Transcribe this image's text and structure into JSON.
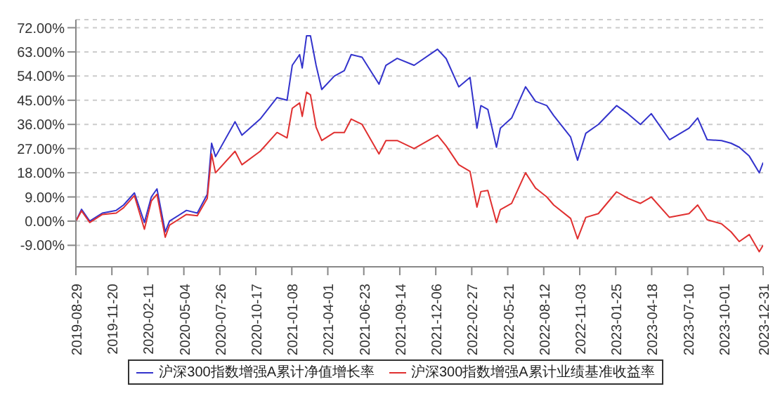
{
  "chart_data": {
    "type": "line",
    "grid": "y",
    "legend": "bottom",
    "x": [
      "2019-08-29",
      "2019-09-11",
      "2019-09-30",
      "2019-10-29",
      "2019-11-30",
      "2019-12-17",
      "2020-01-11",
      "2020-02-03",
      "2020-02-19",
      "2020-03-03",
      "2020-03-22",
      "2020-04-01",
      "2020-05-10",
      "2020-06-04",
      "2020-06-27",
      "2020-07-07",
      "2020-07-16",
      "2020-08-30",
      "2020-09-15",
      "2020-10-27",
      "2020-12-05",
      "2020-12-28",
      "2021-01-09",
      "2021-01-26",
      "2021-02-01",
      "2021-02-11",
      "2021-02-20",
      "2021-03-05",
      "2021-03-18",
      "2021-04-16",
      "2021-05-09",
      "2021-05-25",
      "2021-06-19",
      "2021-07-28",
      "2021-08-13",
      "2021-09-08",
      "2021-10-17",
      "2021-12-10",
      "2021-12-30",
      "2022-01-28",
      "2022-02-23",
      "2022-03-11",
      "2022-03-20",
      "2022-04-05",
      "2022-04-25",
      "2022-05-04",
      "2022-05-30",
      "2022-07-01",
      "2022-07-24",
      "2022-08-19",
      "2022-09-04",
      "2022-10-13",
      "2022-10-29",
      "2022-11-17",
      "2022-12-16",
      "2023-01-27",
      "2023-02-22",
      "2023-03-23",
      "2023-04-17",
      "2023-05-29",
      "2023-07-13",
      "2023-08-02",
      "2023-08-24",
      "2023-09-26",
      "2023-10-18",
      "2023-11-06",
      "2023-11-29",
      "2023-12-22",
      "2023-12-31"
    ],
    "series": [
      {
        "name": "沪深300指数增强A累计净值增长率",
        "color": "#3333cc",
        "values": [
          0,
          4.4,
          0,
          3,
          4,
          6,
          10.5,
          -0.5,
          9,
          12,
          -4,
          0,
          4,
          3,
          10,
          29,
          24,
          37,
          32,
          38,
          46,
          45,
          58,
          62,
          57,
          69,
          69,
          58,
          49,
          54,
          56,
          62,
          61,
          51,
          58,
          60.6,
          58,
          64,
          60.5,
          50,
          53.5,
          34.6,
          43,
          41.6,
          27.5,
          34.6,
          38.4,
          50,
          44.6,
          43,
          39.3,
          31.3,
          22.7,
          32.7,
          36,
          43,
          40,
          36,
          40,
          30.3,
          34.6,
          38.4,
          30.3,
          30,
          29,
          27.5,
          24.2,
          18,
          21.8
        ]
      },
      {
        "name": "沪深300指数增强A累计业绩基准收益率",
        "color": "#e03030",
        "values": [
          0,
          3.8,
          -0.5,
          2.5,
          3,
          5,
          9.5,
          -3,
          7.5,
          10,
          -6,
          -1.5,
          2.5,
          2,
          8.5,
          25,
          18,
          26,
          21,
          26,
          33,
          31,
          42,
          44,
          39,
          48,
          47,
          35,
          30,
          33,
          33,
          38,
          36,
          25,
          30,
          30,
          27,
          32,
          28,
          21,
          18.5,
          5.2,
          11,
          11.4,
          -0.5,
          4.3,
          6.6,
          18,
          12.3,
          9,
          6,
          1,
          -6.6,
          1.4,
          2.8,
          10.9,
          8.5,
          6.6,
          9,
          1.4,
          2.8,
          6,
          0.5,
          -1,
          -4,
          -7.6,
          -5,
          -11.4,
          -9
        ]
      }
    ],
    "xlim": [
      "2019-08-29",
      "2023-12-31"
    ],
    "xticks": [
      "2019-08-29",
      "2019-11-20",
      "2020-02-11",
      "2020-05-04",
      "2020-07-26",
      "2020-10-17",
      "2021-01-08",
      "2021-04-01",
      "2021-06-23",
      "2021-09-14",
      "2021-12-06",
      "2022-02-27",
      "2022-05-21",
      "2022-08-12",
      "2022-11-03",
      "2023-01-25",
      "2023-04-18",
      "2023-07-10",
      "2023-10-01",
      "2023-12-31"
    ],
    "ylim": [
      -17,
      75
    ],
    "yticks": [
      {
        "value": -9,
        "label": "-9.00%"
      },
      {
        "value": 0,
        "label": "0.00%"
      },
      {
        "value": 9,
        "label": "9.00%"
      },
      {
        "value": 18,
        "label": "18.00%"
      },
      {
        "value": 27,
        "label": "27.00%"
      },
      {
        "value": 36,
        "label": "36.00%"
      },
      {
        "value": 45,
        "label": "45.00%"
      },
      {
        "value": 54,
        "label": "54.00%"
      },
      {
        "value": 63,
        "label": "63.00%"
      },
      {
        "value": 72,
        "label": "72.00%"
      }
    ]
  }
}
